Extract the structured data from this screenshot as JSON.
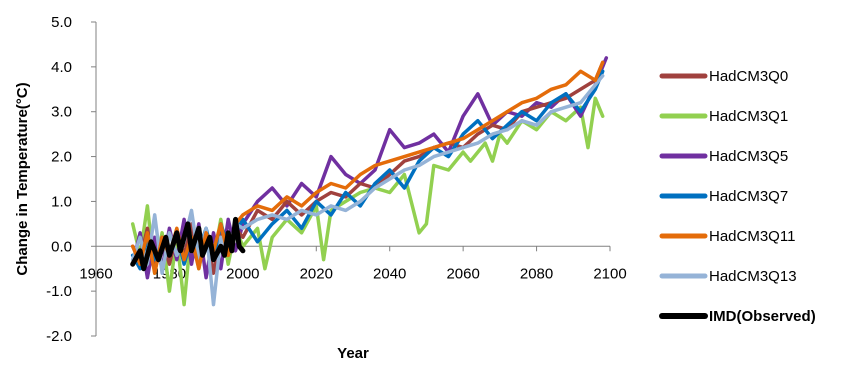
{
  "chart_data": {
    "type": "line",
    "title": "",
    "xlabel": "Year",
    "ylabel": "Change in Temperature(°C)",
    "xlim": [
      1960,
      2100
    ],
    "ylim": [
      -2.0,
      5.0
    ],
    "x_ticks": [
      "1960",
      "1980",
      "2000",
      "2020",
      "2040",
      "2060",
      "2080",
      "2100"
    ],
    "y_ticks": [
      "-2.0",
      "-1.0",
      "0.0",
      "1.0",
      "2.0",
      "3.0",
      "4.0",
      "5.0"
    ],
    "grid": false,
    "legend_position": "right",
    "series": [
      {
        "name": "HadCM3Q0",
        "color": "#A0413E",
        "points": [
          [
            1970,
            0.0
          ],
          [
            1972,
            -0.3
          ],
          [
            1974,
            0.4
          ],
          [
            1976,
            -0.5
          ],
          [
            1978,
            0.2
          ],
          [
            1980,
            -0.4
          ],
          [
            1982,
            0.3
          ],
          [
            1984,
            -0.2
          ],
          [
            1986,
            0.5
          ],
          [
            1988,
            -0.3
          ],
          [
            1990,
            0.2
          ],
          [
            1992,
            -0.6
          ],
          [
            1994,
            0.3
          ],
          [
            1996,
            -0.2
          ],
          [
            1998,
            0.4
          ],
          [
            2000,
            0.2
          ],
          [
            2004,
            0.8
          ],
          [
            2008,
            0.6
          ],
          [
            2012,
            1.0
          ],
          [
            2016,
            0.7
          ],
          [
            2020,
            1.0
          ],
          [
            2024,
            1.2
          ],
          [
            2028,
            1.1
          ],
          [
            2032,
            1.4
          ],
          [
            2036,
            1.3
          ],
          [
            2040,
            1.6
          ],
          [
            2044,
            1.9
          ],
          [
            2048,
            2.0
          ],
          [
            2052,
            2.2
          ],
          [
            2056,
            2.3
          ],
          [
            2060,
            2.2
          ],
          [
            2064,
            2.5
          ],
          [
            2068,
            2.7
          ],
          [
            2072,
            2.6
          ],
          [
            2076,
            3.0
          ],
          [
            2080,
            3.1
          ],
          [
            2084,
            3.2
          ],
          [
            2088,
            3.3
          ],
          [
            2092,
            3.5
          ],
          [
            2096,
            3.7
          ],
          [
            2098,
            4.1
          ]
        ]
      },
      {
        "name": "HadCM3Q1",
        "color": "#92D050",
        "points": [
          [
            1970,
            0.5
          ],
          [
            1972,
            -0.2
          ],
          [
            1974,
            0.9
          ],
          [
            1976,
            -0.6
          ],
          [
            1978,
            0.3
          ],
          [
            1980,
            -1.0
          ],
          [
            1982,
            0.2
          ],
          [
            1984,
            -1.3
          ],
          [
            1986,
            0.4
          ],
          [
            1988,
            -0.5
          ],
          [
            1990,
            0.3
          ],
          [
            1992,
            -0.3
          ],
          [
            1994,
            0.6
          ],
          [
            1996,
            -0.4
          ],
          [
            1998,
            0.4
          ],
          [
            2000,
            0.0
          ],
          [
            2004,
            0.4
          ],
          [
            2006,
            -0.5
          ],
          [
            2008,
            0.2
          ],
          [
            2012,
            0.6
          ],
          [
            2016,
            0.3
          ],
          [
            2020,
            0.9
          ],
          [
            2022,
            -0.3
          ],
          [
            2024,
            0.8
          ],
          [
            2028,
            1.0
          ],
          [
            2032,
            1.2
          ],
          [
            2036,
            1.3
          ],
          [
            2040,
            1.2
          ],
          [
            2044,
            1.6
          ],
          [
            2048,
            0.3
          ],
          [
            2050,
            0.5
          ],
          [
            2052,
            1.8
          ],
          [
            2056,
            1.7
          ],
          [
            2060,
            2.1
          ],
          [
            2062,
            1.9
          ],
          [
            2066,
            2.3
          ],
          [
            2068,
            1.9
          ],
          [
            2070,
            2.5
          ],
          [
            2072,
            2.3
          ],
          [
            2076,
            2.8
          ],
          [
            2080,
            2.6
          ],
          [
            2084,
            3.0
          ],
          [
            2088,
            2.8
          ],
          [
            2092,
            3.1
          ],
          [
            2094,
            2.2
          ],
          [
            2096,
            3.3
          ],
          [
            2098,
            2.9
          ]
        ]
      },
      {
        "name": "HadCM3Q5",
        "color": "#7030A0",
        "points": [
          [
            1970,
            -0.4
          ],
          [
            1972,
            0.3
          ],
          [
            1974,
            -0.7
          ],
          [
            1976,
            0.2
          ],
          [
            1978,
            -0.5
          ],
          [
            1980,
            0.4
          ],
          [
            1982,
            -0.3
          ],
          [
            1984,
            0.6
          ],
          [
            1986,
            -0.4
          ],
          [
            1988,
            0.5
          ],
          [
            1990,
            -0.7
          ],
          [
            1992,
            0.3
          ],
          [
            1994,
            -0.5
          ],
          [
            1996,
            0.6
          ],
          [
            1998,
            -0.1
          ],
          [
            2000,
            0.5
          ],
          [
            2004,
            1.0
          ],
          [
            2008,
            1.3
          ],
          [
            2012,
            0.9
          ],
          [
            2016,
            1.4
          ],
          [
            2020,
            1.1
          ],
          [
            2024,
            2.0
          ],
          [
            2028,
            1.6
          ],
          [
            2032,
            1.4
          ],
          [
            2036,
            1.7
          ],
          [
            2040,
            2.6
          ],
          [
            2044,
            2.2
          ],
          [
            2048,
            2.3
          ],
          [
            2052,
            2.5
          ],
          [
            2056,
            2.1
          ],
          [
            2060,
            2.9
          ],
          [
            2064,
            3.4
          ],
          [
            2068,
            2.7
          ],
          [
            2072,
            3.0
          ],
          [
            2076,
            2.9
          ],
          [
            2080,
            3.2
          ],
          [
            2084,
            3.1
          ],
          [
            2088,
            3.4
          ],
          [
            2092,
            2.9
          ],
          [
            2096,
            3.6
          ],
          [
            2099,
            4.2
          ]
        ]
      },
      {
        "name": "HadCM3Q7",
        "color": "#0070C0",
        "points": [
          [
            1970,
            -0.2
          ],
          [
            1972,
            -0.5
          ],
          [
            1974,
            0.2
          ],
          [
            1976,
            -0.3
          ],
          [
            1978,
            0.1
          ],
          [
            1980,
            -0.2
          ],
          [
            1982,
            0.3
          ],
          [
            1984,
            -0.4
          ],
          [
            1986,
            0.2
          ],
          [
            1988,
            -0.1
          ],
          [
            1990,
            0.4
          ],
          [
            1992,
            -0.3
          ],
          [
            1994,
            0.5
          ],
          [
            1996,
            0.0
          ],
          [
            1998,
            0.3
          ],
          [
            2000,
            0.6
          ],
          [
            2004,
            0.1
          ],
          [
            2008,
            0.5
          ],
          [
            2012,
            0.8
          ],
          [
            2016,
            0.4
          ],
          [
            2020,
            1.0
          ],
          [
            2024,
            0.7
          ],
          [
            2028,
            1.2
          ],
          [
            2032,
            0.9
          ],
          [
            2036,
            1.4
          ],
          [
            2040,
            1.7
          ],
          [
            2044,
            1.3
          ],
          [
            2048,
            1.9
          ],
          [
            2052,
            2.2
          ],
          [
            2056,
            2.0
          ],
          [
            2060,
            2.5
          ],
          [
            2064,
            2.8
          ],
          [
            2068,
            2.4
          ],
          [
            2072,
            2.7
          ],
          [
            2076,
            3.0
          ],
          [
            2080,
            2.8
          ],
          [
            2084,
            3.2
          ],
          [
            2088,
            3.4
          ],
          [
            2092,
            3.0
          ],
          [
            2096,
            3.5
          ],
          [
            2098,
            3.9
          ]
        ]
      },
      {
        "name": "HadCM3Q11",
        "color": "#E46C0A",
        "points": [
          [
            1970,
            0.0
          ],
          [
            1972,
            -0.4
          ],
          [
            1974,
            0.3
          ],
          [
            1976,
            -0.6
          ],
          [
            1978,
            0.2
          ],
          [
            1980,
            -0.2
          ],
          [
            1982,
            0.4
          ],
          [
            1984,
            -0.3
          ],
          [
            1986,
            0.2
          ],
          [
            1988,
            -0.5
          ],
          [
            1990,
            0.3
          ],
          [
            1992,
            -0.1
          ],
          [
            1994,
            0.5
          ],
          [
            1996,
            -0.2
          ],
          [
            1998,
            0.5
          ],
          [
            2000,
            0.7
          ],
          [
            2004,
            0.9
          ],
          [
            2008,
            0.8
          ],
          [
            2012,
            1.1
          ],
          [
            2016,
            0.9
          ],
          [
            2020,
            1.2
          ],
          [
            2024,
            1.4
          ],
          [
            2028,
            1.3
          ],
          [
            2032,
            1.6
          ],
          [
            2036,
            1.8
          ],
          [
            2040,
            1.9
          ],
          [
            2044,
            2.0
          ],
          [
            2048,
            2.1
          ],
          [
            2052,
            2.2
          ],
          [
            2056,
            2.3
          ],
          [
            2060,
            2.4
          ],
          [
            2064,
            2.6
          ],
          [
            2068,
            2.8
          ],
          [
            2072,
            3.0
          ],
          [
            2076,
            3.2
          ],
          [
            2080,
            3.3
          ],
          [
            2084,
            3.5
          ],
          [
            2088,
            3.6
          ],
          [
            2092,
            3.9
          ],
          [
            2096,
            3.7
          ],
          [
            2098,
            4.1
          ]
        ]
      },
      {
        "name": "HadCM3Q13",
        "color": "#95B3D7",
        "points": [
          [
            1970,
            -0.3
          ],
          [
            1972,
            0.2
          ],
          [
            1974,
            -0.4
          ],
          [
            1976,
            0.7
          ],
          [
            1978,
            -0.6
          ],
          [
            1980,
            0.3
          ],
          [
            1982,
            -0.2
          ],
          [
            1984,
            0.1
          ],
          [
            1986,
            0.8
          ],
          [
            1988,
            -0.3
          ],
          [
            1990,
            0.4
          ],
          [
            1992,
            -1.3
          ],
          [
            1994,
            0.2
          ],
          [
            1996,
            -0.1
          ],
          [
            1998,
            0.5
          ],
          [
            2000,
            0.4
          ],
          [
            2004,
            0.6
          ],
          [
            2008,
            0.7
          ],
          [
            2012,
            0.6
          ],
          [
            2016,
            0.8
          ],
          [
            2020,
            0.7
          ],
          [
            2024,
            0.9
          ],
          [
            2028,
            0.8
          ],
          [
            2032,
            1.0
          ],
          [
            2036,
            1.3
          ],
          [
            2040,
            1.5
          ],
          [
            2044,
            1.7
          ],
          [
            2048,
            1.8
          ],
          [
            2052,
            2.0
          ],
          [
            2056,
            2.1
          ],
          [
            2060,
            2.2
          ],
          [
            2064,
            2.3
          ],
          [
            2068,
            2.5
          ],
          [
            2072,
            2.6
          ],
          [
            2076,
            2.8
          ],
          [
            2080,
            2.7
          ],
          [
            2084,
            3.0
          ],
          [
            2088,
            3.1
          ],
          [
            2092,
            3.2
          ],
          [
            2096,
            3.6
          ],
          [
            2098,
            3.8
          ]
        ]
      },
      {
        "name": "IMD(Observed)",
        "color": "#000000",
        "bold": true,
        "points": [
          [
            1970,
            -0.4
          ],
          [
            1972,
            -0.1
          ],
          [
            1973,
            -0.5
          ],
          [
            1975,
            0.1
          ],
          [
            1977,
            -0.3
          ],
          [
            1979,
            0.2
          ],
          [
            1980,
            -0.2
          ],
          [
            1982,
            0.3
          ],
          [
            1983,
            -0.1
          ],
          [
            1985,
            0.5
          ],
          [
            1986,
            -0.1
          ],
          [
            1988,
            0.4
          ],
          [
            1989,
            -0.2
          ],
          [
            1991,
            0.2
          ],
          [
            1992,
            -0.3
          ],
          [
            1994,
            0.0
          ],
          [
            1995,
            -0.2
          ],
          [
            1996,
            0.3
          ],
          [
            1997,
            -0.1
          ],
          [
            1998,
            0.6
          ],
          [
            1999,
            0.0
          ],
          [
            2000,
            -0.1
          ]
        ]
      }
    ]
  }
}
